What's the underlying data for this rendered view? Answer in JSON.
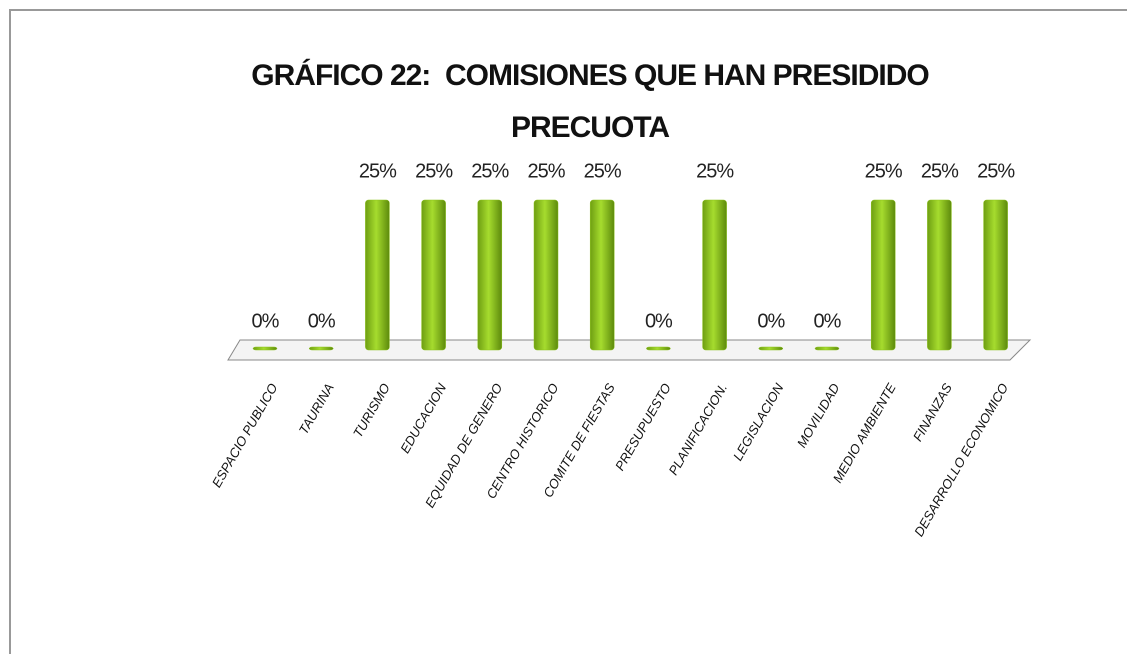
{
  "chart_data": {
    "type": "bar",
    "title": "GRÁFICO 22:  COMISIONES QUE HAN PRESIDIDO PRECUOTA",
    "categories": [
      "ESPACIO PUBLICO",
      "TAURINA",
      "TURISMO",
      "EDUCACION",
      "EQUIDAD DE GENERO",
      "CENTRO HISTORICO",
      "COMITE DE FIESTAS",
      "PRESUPUESTO",
      "PLANIFICACION.",
      "LEGISLACION",
      "MOVILIDAD",
      "MEDIO AMBIENTE",
      "FINANZAS",
      "DESARROLLO ECONOMICO"
    ],
    "values": [
      0,
      0,
      25,
      25,
      25,
      25,
      25,
      0,
      25,
      0,
      0,
      25,
      25,
      25
    ],
    "value_labels": [
      "0%",
      "0%",
      "25%",
      "25%",
      "25%",
      "25%",
      "25%",
      "0%",
      "25%",
      "0%",
      "0%",
      "25%",
      "25%",
      "25%"
    ],
    "color": "#8cc21d"
  }
}
